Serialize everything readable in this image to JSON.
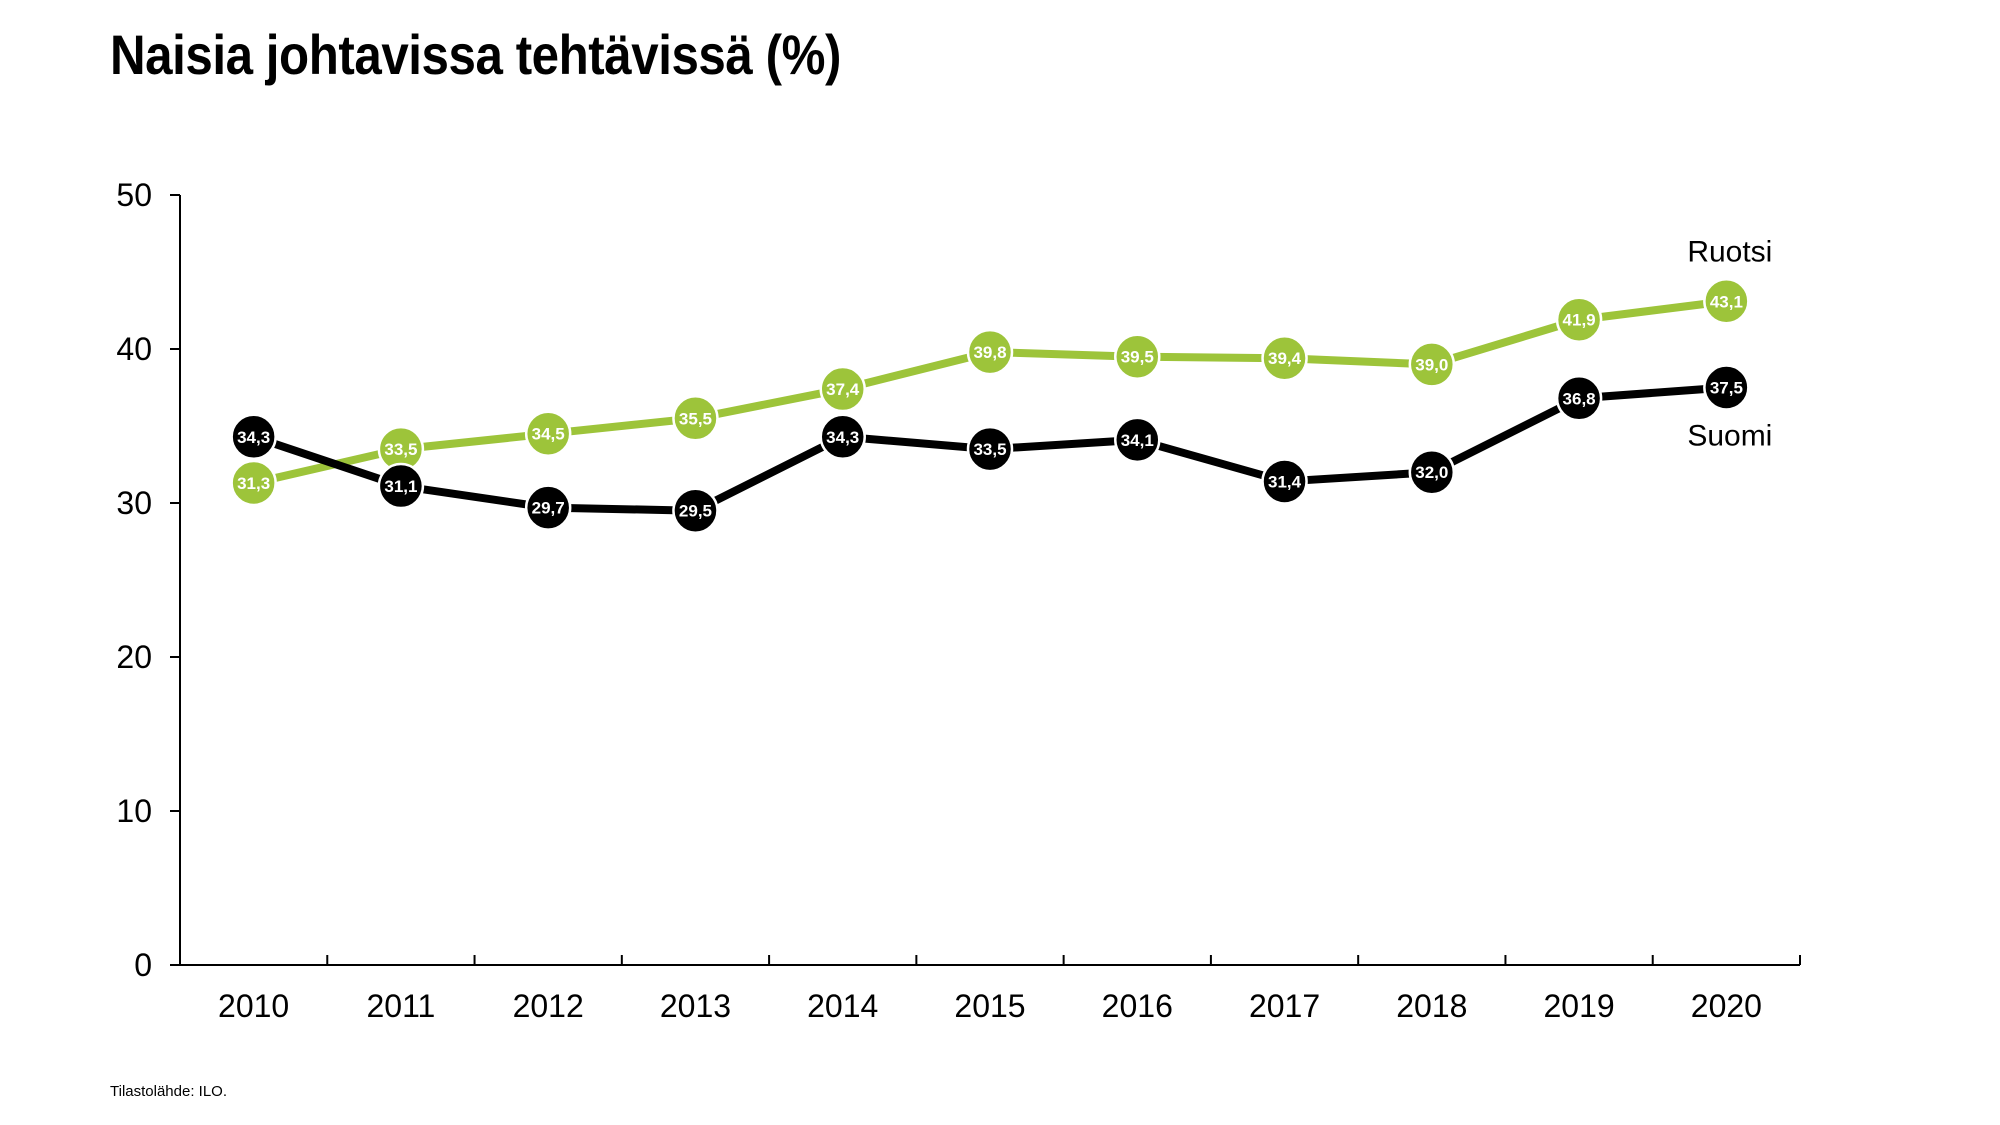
{
  "title": "Naisia johtavissa tehtävissä (%)",
  "source": "Tilastolähde: ILO.",
  "chart_data": {
    "type": "line",
    "title": "Naisia johtavissa tehtävissä (%)",
    "x": [
      "2010",
      "2011",
      "2012",
      "2013",
      "2014",
      "2015",
      "2016",
      "2017",
      "2018",
      "2019",
      "2020"
    ],
    "ylim": [
      0,
      50
    ],
    "yticks": [
      "0",
      "10",
      "20",
      "30",
      "40",
      "50"
    ],
    "grid": false,
    "legend": "labels at line ends (right)",
    "series": [
      {
        "name": "Ruotsi",
        "color": "#9dc43a",
        "values": [
          31.3,
          33.5,
          34.5,
          35.5,
          37.4,
          39.8,
          39.5,
          39.4,
          39.0,
          41.9,
          43.1
        ],
        "labels": [
          "31,3",
          "33,5",
          "34,5",
          "35,5",
          "37,4",
          "39,8",
          "39,5",
          "39,4",
          "39,0",
          "41,9",
          "43,1"
        ]
      },
      {
        "name": "Suomi",
        "color": "#000000",
        "values": [
          34.3,
          31.1,
          29.7,
          29.5,
          34.3,
          33.5,
          34.1,
          31.4,
          32.0,
          36.8,
          37.5
        ],
        "labels": [
          "34,3",
          "31,1",
          "29,7",
          "29,5",
          "34,3",
          "33,5",
          "34,1",
          "31,4",
          "32,0",
          "36,8",
          "37,5"
        ]
      }
    ]
  }
}
